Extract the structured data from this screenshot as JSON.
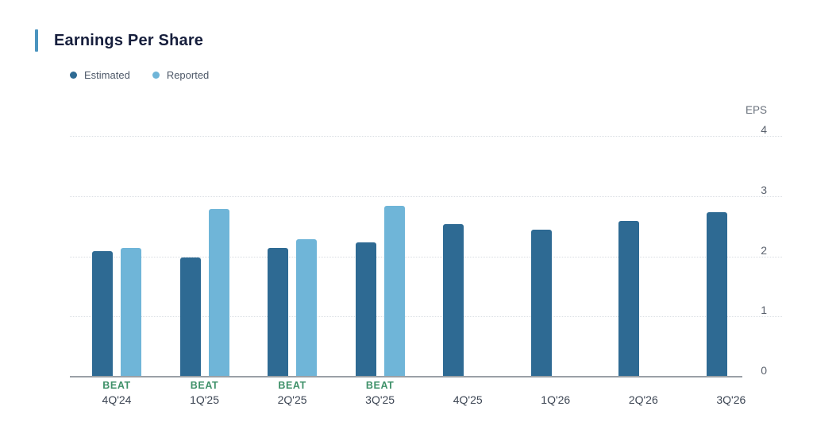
{
  "title": "Earnings Per Share",
  "accent_color": "#4b94bf",
  "chart_data": {
    "type": "bar",
    "title": "Earnings Per Share",
    "categories": [
      "4Q'24",
      "1Q'25",
      "2Q'25",
      "3Q'25",
      "4Q'25",
      "1Q'26",
      "2Q'26",
      "3Q'26"
    ],
    "series": [
      {
        "name": "Estimated",
        "color": "#2e6a93",
        "values": [
          2.1,
          2.0,
          2.15,
          2.25,
          2.55,
          2.45,
          2.6,
          2.75
        ]
      },
      {
        "name": "Reported",
        "color": "#6fb5d8",
        "values": [
          2.15,
          2.8,
          2.3,
          2.85,
          null,
          null,
          null,
          null
        ]
      }
    ],
    "beat_label": "BEAT",
    "beat_color": "#3f9169",
    "beat_flags": [
      true,
      true,
      true,
      true,
      false,
      false,
      false,
      false
    ],
    "ylabel": "EPS",
    "ylim": [
      0,
      4
    ],
    "yticks": [
      0,
      1,
      2,
      3,
      4
    ],
    "grid": "dotted-horizontal",
    "legend_position": "top-left",
    "y_axis_side": "right"
  }
}
